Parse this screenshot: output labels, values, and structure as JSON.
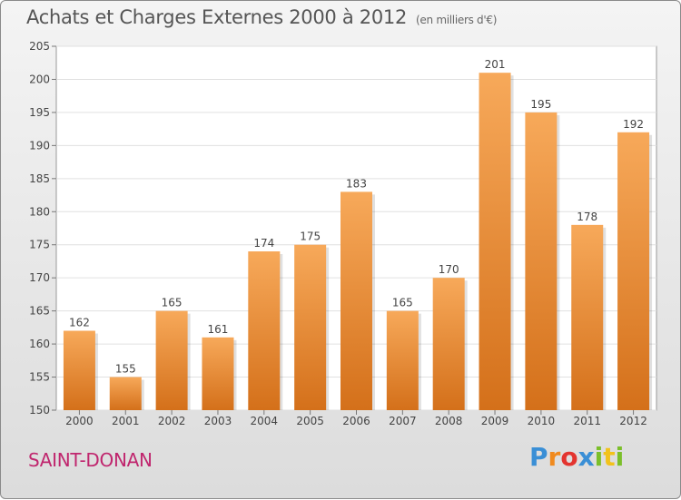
{
  "header": {
    "title": "Achats et Charges Externes 2000 à 2012",
    "subtitle": "(en milliers d'€)"
  },
  "footer": {
    "commune": "SAINT-DONAN",
    "logo_text": "Proxiti"
  },
  "colors": {
    "bar_top": "#f7a95a",
    "bar_bottom": "#d4701a",
    "title": "#555555",
    "commune": "#c0266e"
  },
  "chart_data": {
    "type": "bar",
    "title": "Achats et Charges Externes 2000 à 2012",
    "subtitle": "(en milliers d'€)",
    "categories": [
      "2000",
      "2001",
      "2002",
      "2003",
      "2004",
      "2005",
      "2006",
      "2007",
      "2008",
      "2009",
      "2010",
      "2011",
      "2012"
    ],
    "values": [
      162,
      155,
      165,
      161,
      174,
      175,
      183,
      165,
      170,
      201,
      195,
      178,
      192
    ],
    "ylim": [
      150,
      205
    ],
    "yticks": [
      150,
      155,
      160,
      165,
      170,
      175,
      180,
      185,
      190,
      195,
      200,
      205
    ],
    "grid": true,
    "xlabel": "",
    "ylabel": ""
  }
}
